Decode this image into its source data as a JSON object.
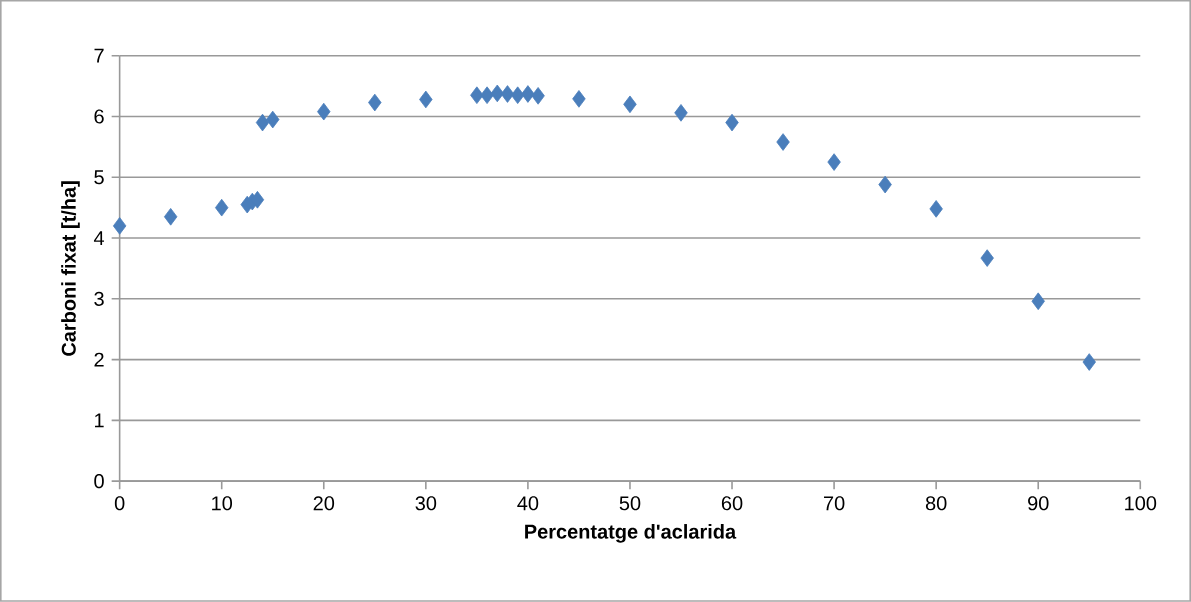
{
  "chart_data": {
    "type": "scatter",
    "xlabel": "Percentatge d'aclarida",
    "ylabel": "Carboni fixat [t/ha]",
    "x": [
      0,
      5,
      10,
      12.5,
      13,
      13.5,
      14,
      15,
      20,
      25,
      30,
      35,
      36,
      37,
      38,
      39,
      40,
      41,
      45,
      50,
      55,
      60,
      65,
      70,
      75,
      80,
      85,
      90,
      95
    ],
    "series": [
      {
        "color": "#4a7ebb",
        "values": [
          4.2,
          4.35,
          4.5,
          4.55,
          4.6,
          4.63,
          5.9,
          5.95,
          6.08,
          6.23,
          6.28,
          6.35,
          6.35,
          6.38,
          6.37,
          6.35,
          6.37,
          6.34,
          6.29,
          6.2,
          6.06,
          5.9,
          5.58,
          5.25,
          4.88,
          4.48,
          3.67,
          2.96,
          1.96
        ]
      }
    ],
    "xlim": [
      0,
      100
    ],
    "ylim": [
      0,
      7
    ],
    "xticks": [
      0,
      10,
      20,
      30,
      40,
      50,
      60,
      70,
      80,
      90,
      100
    ],
    "yticks": [
      0,
      1,
      2,
      3,
      4,
      5,
      6,
      7
    ],
    "grid": "y",
    "marker": "diamond"
  }
}
